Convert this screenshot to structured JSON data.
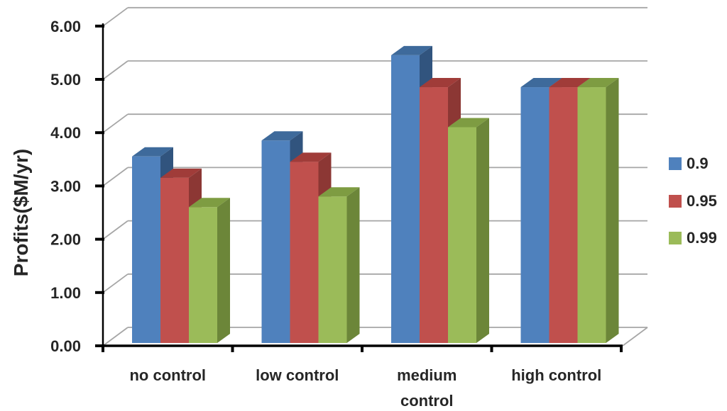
{
  "chart_data": {
    "type": "bar",
    "style": "3d-clustered-column",
    "title": "",
    "xlabel": "",
    "ylabel": "Profits($M/yr)",
    "categories": [
      "no control",
      "low control",
      "medium control",
      "high control"
    ],
    "category_label_lines": [
      [
        "no control"
      ],
      [
        "low control"
      ],
      [
        "medium",
        "control"
      ],
      [
        "high control"
      ]
    ],
    "series": [
      {
        "name": "0.9",
        "values": [
          3.5,
          3.8,
          5.4,
          4.8
        ],
        "color": "#4F81BD",
        "top_color": "#3E6A9B",
        "side_color": "#31547E"
      },
      {
        "name": "0.95",
        "values": [
          3.1,
          3.4,
          4.8,
          4.8
        ],
        "color": "#C0504D",
        "top_color": "#A03C39",
        "side_color": "#8C3734"
      },
      {
        "name": "0.99",
        "values": [
          2.55,
          2.75,
          4.05,
          4.8
        ],
        "color": "#9BBB59",
        "top_color": "#7E9C42",
        "side_color": "#6C8639"
      }
    ],
    "y_axis": {
      "min": 0,
      "max": 6,
      "step": 1,
      "tick_labels": [
        "0.00",
        "1.00",
        "2.00",
        "3.00",
        "4.00",
        "5.00",
        "6.00"
      ]
    },
    "legend": {
      "position": "right",
      "entries": [
        "0.9",
        "0.95",
        "0.99"
      ]
    },
    "grid": true,
    "colors": {
      "gridline": "#A6A6A6",
      "axis": "#000000",
      "text": "#262626",
      "background": "#FFFFFF"
    }
  }
}
